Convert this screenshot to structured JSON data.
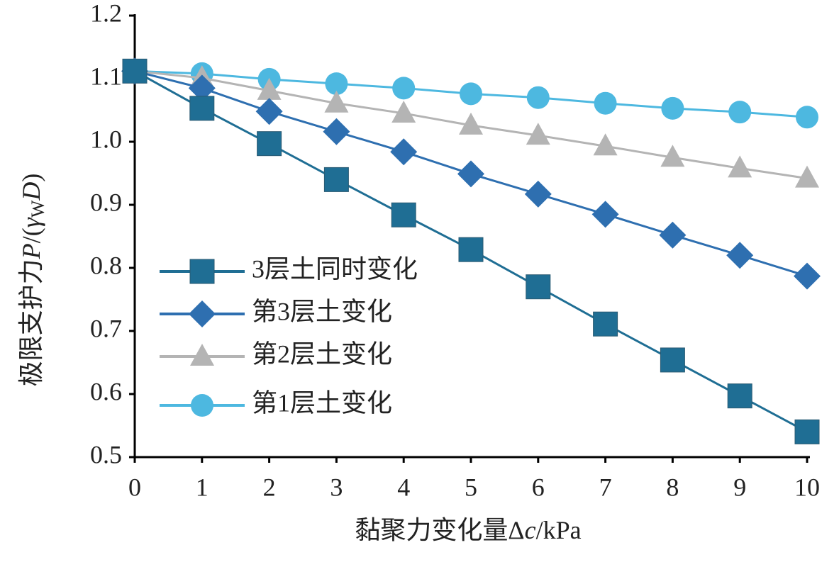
{
  "chart_data": {
    "type": "line",
    "x_label": [
      "黏聚力变化量Δ",
      "c",
      "/kPa"
    ],
    "y_label": [
      "极限支护力",
      "P",
      "/(",
      "γ",
      "W",
      "D",
      ")"
    ],
    "x": [
      0,
      1,
      2,
      3,
      4,
      5,
      6,
      7,
      8,
      9,
      10
    ],
    "xlim": [
      0,
      10
    ],
    "xticks": [
      0,
      1,
      2,
      3,
      4,
      5,
      6,
      7,
      8,
      9,
      10
    ],
    "ylim": [
      0.5,
      1.2
    ],
    "yticks": [
      0.5,
      0.6,
      0.7,
      0.8,
      0.9,
      {
        "value": 1,
        "label": "1.0"
      },
      1.1,
      1.2
    ],
    "legend": "center-left",
    "series": [
      {
        "name": "3层土同时变化",
        "color": "#1f6e94",
        "marker": "square",
        "values": [
          1.112,
          1.053,
          0.997,
          0.94,
          0.884,
          0.829,
          0.77,
          0.711,
          0.654,
          0.597,
          0.54
        ]
      },
      {
        "name": "第3层土变化",
        "color": "#2e6fb0",
        "marker": "diamond",
        "values": [
          1.112,
          1.085,
          1.048,
          1.016,
          0.984,
          0.949,
          0.917,
          0.885,
          0.852,
          0.82,
          0.787
        ]
      },
      {
        "name": "第2层土变化",
        "color": "#b4b4b4",
        "marker": "triangle",
        "values": [
          1.112,
          1.101,
          1.081,
          1.061,
          1.045,
          1.026,
          1.01,
          0.993,
          0.975,
          0.958,
          0.942
        ]
      },
      {
        "name": "第1层土变化",
        "color": "#4db8e0",
        "marker": "circle",
        "values": [
          1.112,
          1.108,
          1.099,
          1.092,
          1.085,
          1.076,
          1.07,
          1.061,
          1.053,
          1.047,
          1.039
        ]
      }
    ]
  }
}
